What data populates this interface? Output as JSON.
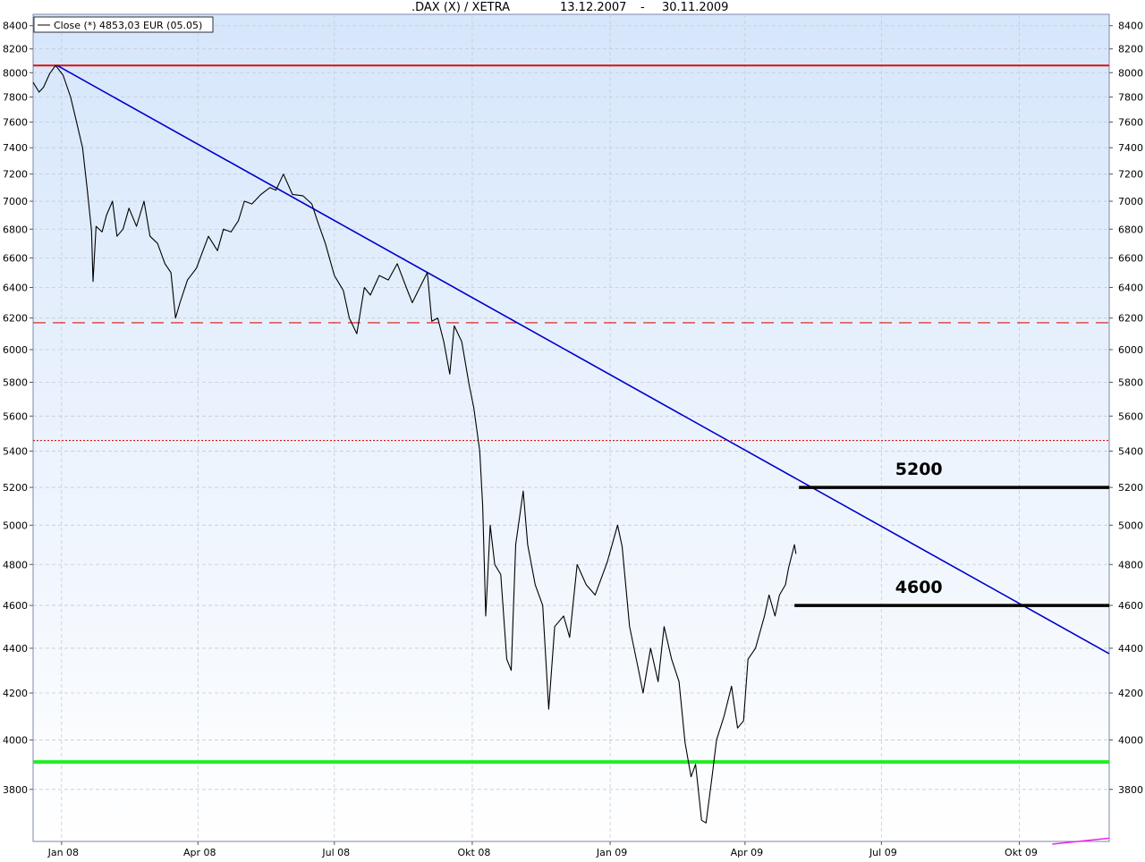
{
  "chart_data": {
    "type": "line",
    "title": ".DAX (X) / XETRA",
    "date_range": {
      "start": "13.12.2007",
      "separator": "-",
      "end": "30.11.2009"
    },
    "legend": {
      "label": "Close (*) 4853,03 EUR (05.05)",
      "position": "top-left"
    },
    "x_range": [
      "2007-12-13",
      "2009-11-30"
    ],
    "y_range": [
      3600,
      8500
    ],
    "y_scale": "log",
    "y_ticks": [
      3800,
      4000,
      4200,
      4400,
      4600,
      4800,
      5000,
      5200,
      5400,
      5600,
      5800,
      6000,
      6200,
      6400,
      6600,
      6800,
      7000,
      7200,
      7400,
      7600,
      7800,
      8000,
      8200,
      8400
    ],
    "x_ticks": [
      {
        "date": "2008-01-01",
        "label": "Jan 08"
      },
      {
        "date": "2008-04-01",
        "label": "Apr 08"
      },
      {
        "date": "2008-07-01",
        "label": "Jul 08"
      },
      {
        "date": "2008-10-01",
        "label": "Okt 08"
      },
      {
        "date": "2009-01-01",
        "label": "Jan 09"
      },
      {
        "date": "2009-04-01",
        "label": "Apr 09"
      },
      {
        "date": "2009-07-01",
        "label": "Jul 09"
      },
      {
        "date": "2009-10-01",
        "label": "Okt 09"
      }
    ],
    "grid": true,
    "colors": {
      "price_line": "#000000",
      "trendline": "#0000cc",
      "resistance": "#dd1111",
      "support": "#22ee22",
      "level_marks": "#000000",
      "background_top": "#d6e6fb",
      "background_bottom": "#ffffff"
    },
    "series": [
      {
        "name": "Close (*)",
        "points": [
          [
            "2007-12-13",
            7920
          ],
          [
            "2007-12-17",
            7840
          ],
          [
            "2007-12-20",
            7880
          ],
          [
            "2007-12-24",
            7990
          ],
          [
            "2007-12-28",
            8060
          ],
          [
            "2008-01-02",
            7980
          ],
          [
            "2008-01-07",
            7800
          ],
          [
            "2008-01-10",
            7650
          ],
          [
            "2008-01-15",
            7400
          ],
          [
            "2008-01-18",
            7100
          ],
          [
            "2008-01-21",
            6790
          ],
          [
            "2008-01-22",
            6440
          ],
          [
            "2008-01-24",
            6820
          ],
          [
            "2008-01-28",
            6780
          ],
          [
            "2008-01-31",
            6900
          ],
          [
            "2008-02-04",
            7000
          ],
          [
            "2008-02-07",
            6750
          ],
          [
            "2008-02-11",
            6800
          ],
          [
            "2008-02-15",
            6950
          ],
          [
            "2008-02-20",
            6820
          ],
          [
            "2008-02-25",
            7000
          ],
          [
            "2008-02-29",
            6750
          ],
          [
            "2008-03-05",
            6700
          ],
          [
            "2008-03-10",
            6560
          ],
          [
            "2008-03-14",
            6500
          ],
          [
            "2008-03-17",
            6200
          ],
          [
            "2008-03-20",
            6300
          ],
          [
            "2008-03-25",
            6450
          ],
          [
            "2008-03-31",
            6530
          ],
          [
            "2008-04-04",
            6640
          ],
          [
            "2008-04-08",
            6750
          ],
          [
            "2008-04-14",
            6650
          ],
          [
            "2008-04-18",
            6800
          ],
          [
            "2008-04-23",
            6780
          ],
          [
            "2008-04-28",
            6860
          ],
          [
            "2008-05-02",
            7000
          ],
          [
            "2008-05-07",
            6980
          ],
          [
            "2008-05-13",
            7050
          ],
          [
            "2008-05-19",
            7100
          ],
          [
            "2008-05-23",
            7080
          ],
          [
            "2008-05-28",
            7200
          ],
          [
            "2008-06-03",
            7050
          ],
          [
            "2008-06-10",
            7040
          ],
          [
            "2008-06-16",
            6980
          ],
          [
            "2008-06-20",
            6850
          ],
          [
            "2008-06-25",
            6700
          ],
          [
            "2008-07-01",
            6480
          ],
          [
            "2008-07-07",
            6380
          ],
          [
            "2008-07-11",
            6200
          ],
          [
            "2008-07-16",
            6100
          ],
          [
            "2008-07-21",
            6400
          ],
          [
            "2008-07-25",
            6350
          ],
          [
            "2008-07-31",
            6480
          ],
          [
            "2008-08-06",
            6450
          ],
          [
            "2008-08-12",
            6560
          ],
          [
            "2008-08-18",
            6400
          ],
          [
            "2008-08-22",
            6300
          ],
          [
            "2008-08-27",
            6400
          ],
          [
            "2008-09-01",
            6500
          ],
          [
            "2008-09-04",
            6180
          ],
          [
            "2008-09-08",
            6200
          ],
          [
            "2008-09-12",
            6050
          ],
          [
            "2008-09-16",
            5850
          ],
          [
            "2008-09-19",
            6150
          ],
          [
            "2008-09-24",
            6050
          ],
          [
            "2008-09-29",
            5780
          ],
          [
            "2008-10-02",
            5650
          ],
          [
            "2008-10-06",
            5400
          ],
          [
            "2008-10-08",
            5100
          ],
          [
            "2008-10-10",
            4550
          ],
          [
            "2008-10-13",
            5000
          ],
          [
            "2008-10-16",
            4800
          ],
          [
            "2008-10-20",
            4750
          ],
          [
            "2008-10-24",
            4350
          ],
          [
            "2008-10-27",
            4300
          ],
          [
            "2008-10-30",
            4900
          ],
          [
            "2008-11-04",
            5180
          ],
          [
            "2008-11-07",
            4900
          ],
          [
            "2008-11-12",
            4700
          ],
          [
            "2008-11-17",
            4600
          ],
          [
            "2008-11-21",
            4130
          ],
          [
            "2008-11-25",
            4500
          ],
          [
            "2008-12-01",
            4550
          ],
          [
            "2008-12-05",
            4450
          ],
          [
            "2008-12-10",
            4800
          ],
          [
            "2008-12-16",
            4700
          ],
          [
            "2008-12-22",
            4650
          ],
          [
            "2008-12-30",
            4810
          ],
          [
            "2009-01-06",
            5000
          ],
          [
            "2009-01-09",
            4890
          ],
          [
            "2009-01-14",
            4500
          ],
          [
            "2009-01-20",
            4300
          ],
          [
            "2009-01-23",
            4200
          ],
          [
            "2009-01-28",
            4400
          ],
          [
            "2009-02-02",
            4250
          ],
          [
            "2009-02-06",
            4500
          ],
          [
            "2009-02-11",
            4350
          ],
          [
            "2009-02-16",
            4250
          ],
          [
            "2009-02-20",
            3990
          ],
          [
            "2009-02-24",
            3850
          ],
          [
            "2009-02-27",
            3900
          ],
          [
            "2009-03-03",
            3680
          ],
          [
            "2009-03-06",
            3670
          ],
          [
            "2009-03-10",
            3850
          ],
          [
            "2009-03-13",
            4000
          ],
          [
            "2009-03-18",
            4100
          ],
          [
            "2009-03-23",
            4230
          ],
          [
            "2009-03-27",
            4050
          ],
          [
            "2009-03-31",
            4080
          ],
          [
            "2009-04-03",
            4350
          ],
          [
            "2009-04-08",
            4400
          ],
          [
            "2009-04-14",
            4550
          ],
          [
            "2009-04-17",
            4650
          ],
          [
            "2009-04-21",
            4550
          ],
          [
            "2009-04-24",
            4650
          ],
          [
            "2009-04-28",
            4700
          ],
          [
            "2009-04-30",
            4780
          ],
          [
            "2009-05-04",
            4900
          ],
          [
            "2009-05-05",
            4853
          ]
        ]
      }
    ],
    "overlays": [
      {
        "name": "resistance-solid",
        "kind": "hline",
        "y": 8060,
        "from": "2007-12-13",
        "to": "2009-11-30",
        "color": "#dd1111",
        "style": "solid",
        "width": 2
      },
      {
        "name": "resistance-dashed",
        "kind": "hline",
        "y": 6170,
        "from": "2007-12-13",
        "to": "2009-11-30",
        "color": "#dd1111",
        "style": "dashed",
        "width": 1.2
      },
      {
        "name": "resistance-dotted",
        "kind": "hline",
        "y": 5460,
        "from": "2007-12-13",
        "to": "2009-11-30",
        "color": "#dd1111",
        "style": "dotted",
        "width": 1.2
      },
      {
        "name": "support-line",
        "kind": "hline",
        "y": 3910,
        "from": "2007-12-13",
        "to": "2009-11-30",
        "color": "#22ee22",
        "style": "solid",
        "width": 4
      },
      {
        "name": "downtrend-line",
        "kind": "segment",
        "x1": "2007-12-29",
        "y1": 8060,
        "x2": "2009-11-30",
        "y2": 4375,
        "color": "#0000cc",
        "style": "solid",
        "width": 1.6
      },
      {
        "name": "level-5200",
        "kind": "segment",
        "x1": "2009-05-07",
        "y1": 5200,
        "x2": "2009-11-30",
        "y2": 5200,
        "color": "#000000",
        "style": "solid",
        "width": 3.5
      },
      {
        "name": "level-4600",
        "kind": "segment",
        "x1": "2009-05-04",
        "y1": 4600,
        "x2": "2009-11-30",
        "y2": 4600,
        "color": "#000000",
        "style": "solid",
        "width": 3.5
      },
      {
        "name": "pink-stub",
        "kind": "segment",
        "x1": "2009-10-23",
        "y1": 3590,
        "x2": "2009-11-30",
        "y2": 3612,
        "color": "#ee22ee",
        "style": "solid",
        "width": 1.5
      }
    ],
    "annotations": [
      {
        "name": "level-label-5200",
        "text": "5200",
        "x": "2009-07-26",
        "y": 5200
      },
      {
        "name": "level-label-4600",
        "text": "4600",
        "x": "2009-07-26",
        "y": 4600
      }
    ]
  }
}
